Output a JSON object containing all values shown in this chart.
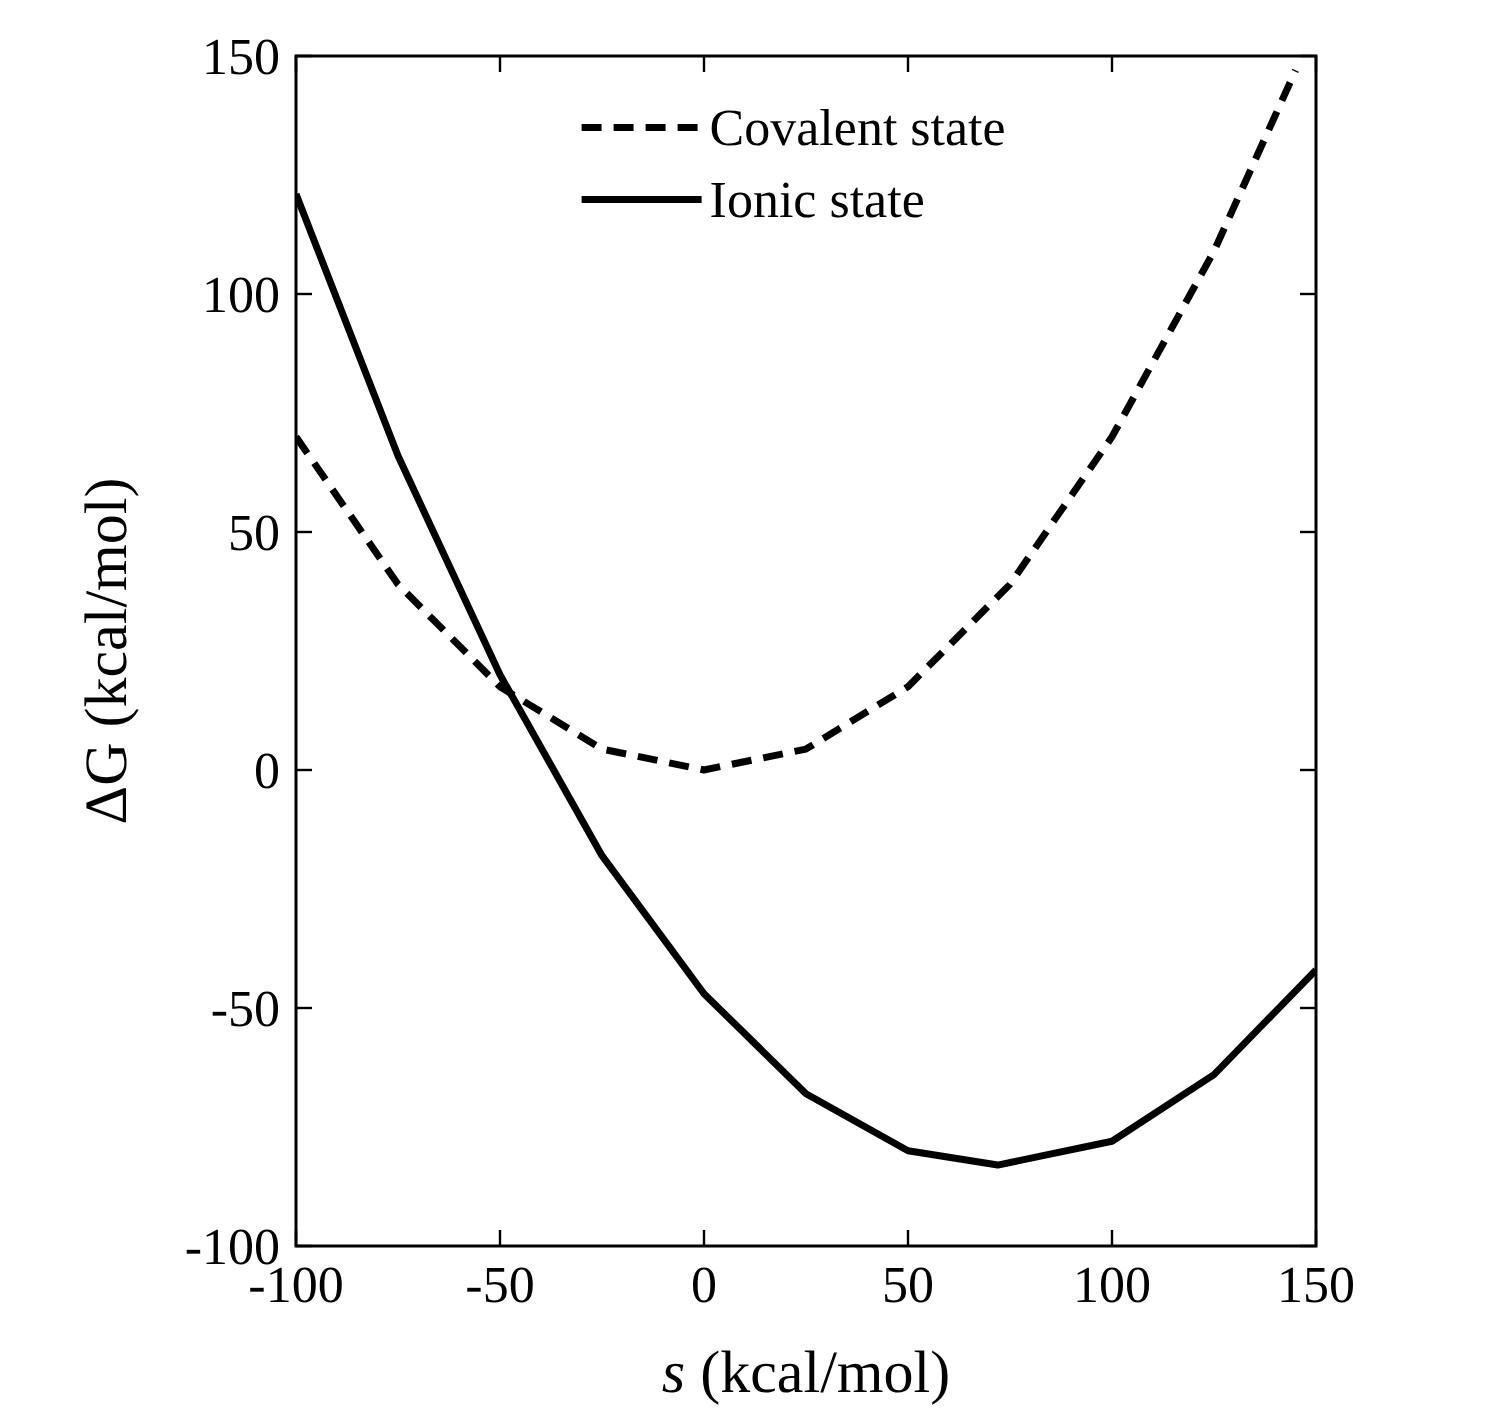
{
  "chart_data": {
    "type": "line",
    "xlabel": "s (kcal/mol)",
    "ylabel": "ΔG (kcal/mol)",
    "xlim": [
      -100,
      150
    ],
    "ylim": [
      -100,
      150
    ],
    "xticks": [
      -100,
      -50,
      0,
      50,
      100,
      150
    ],
    "yticks": [
      -100,
      -50,
      0,
      50,
      100,
      150
    ],
    "grid": false,
    "legend": "top",
    "marker": "none",
    "series": [
      {
        "name": "Covalent state",
        "color": "#000000",
        "line_style": "dashed",
        "x": [
          -100,
          -75,
          -50,
          -25,
          0,
          25,
          50,
          75,
          100,
          125,
          145
        ],
        "values": [
          70,
          39,
          17.5,
          4.4,
          0,
          4.4,
          17.5,
          39,
          70,
          109,
          147
        ]
      },
      {
        "name": "Ionic state",
        "color": "#000000",
        "line_style": "solid",
        "x": [
          -100,
          -75,
          -50,
          -25,
          0,
          25,
          50,
          72,
          100,
          125,
          150
        ],
        "values": [
          121,
          66,
          20,
          -18,
          -47,
          -68,
          -80,
          -83,
          -78,
          -64,
          -42
        ]
      }
    ]
  }
}
